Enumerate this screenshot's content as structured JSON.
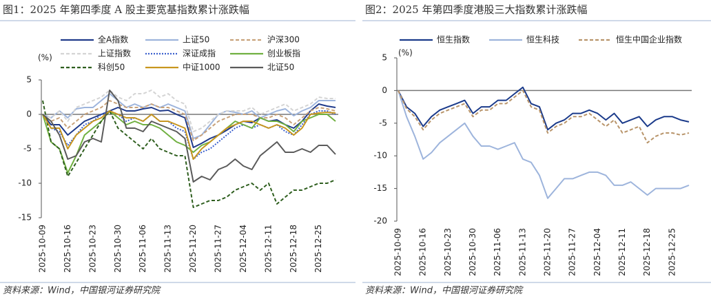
{
  "chart_data": [
    {
      "type": "line",
      "title": "图1：2025 年第四季度 A 股主要宽基指数累计涨跌幅",
      "y_unit_label": "(%)",
      "source": "资料来源：Wind，中国银河证券研究院",
      "categories": [
        "2025-10-09",
        null,
        null,
        "2025-10-16",
        null,
        null,
        "2025-10-23",
        null,
        null,
        "2025-10-30",
        null,
        null,
        "2025-11-06",
        null,
        null,
        "2025-11-13",
        null,
        null,
        "2025-11-20",
        null,
        null,
        "2025-11-27",
        null,
        null,
        "2025-12-04",
        null,
        null,
        "2025-12-11",
        null,
        null,
        "2025-12-18",
        null,
        null,
        "2025-12-25",
        null,
        null
      ],
      "ylim": [
        -15,
        5
      ],
      "yticks": [
        -15,
        -10,
        -5,
        0,
        5
      ],
      "series": [
        {
          "name": "全A指数",
          "color": "#1f3a8a",
          "style": "solid",
          "values": [
            0,
            -1.5,
            -1.5,
            -3,
            -2,
            -1,
            -0.5,
            0,
            0.5,
            1,
            0.5,
            0.5,
            0.8,
            1,
            0.5,
            0.6,
            0,
            -0.5,
            -4.8,
            -4.2,
            -3.5,
            -3,
            -2.3,
            -1.5,
            -1,
            -1.2,
            -0.5,
            -1,
            -0.8,
            -1.5,
            -2,
            -1,
            0.5,
            1.5,
            1.2,
            1
          ]
        },
        {
          "name": "上证50",
          "color": "#9db4dc",
          "style": "solid",
          "values": [
            0,
            -0.5,
            0.5,
            -0.5,
            0.8,
            1,
            1,
            2,
            3,
            2,
            1,
            1.5,
            1,
            1.5,
            1,
            1.5,
            1,
            0.5,
            -3.5,
            -3,
            -1.5,
            0,
            0.5,
            0.3,
            0,
            0.5,
            -0.5,
            0,
            0.5,
            0.8,
            -0.2,
            0.5,
            1,
            2,
            2,
            2
          ]
        },
        {
          "name": "沪深300",
          "color": "#c8a27a",
          "style": "dashed",
          "values": [
            0,
            -1,
            -0.5,
            -2,
            -1,
            0,
            0.5,
            1,
            2,
            1.5,
            1,
            1,
            1,
            1.5,
            1,
            1,
            0.5,
            0,
            -3.8,
            -3,
            -2,
            -1,
            -0.5,
            0,
            0,
            0,
            -0.5,
            -0.5,
            0,
            -0.5,
            -1.5,
            -0.5,
            0.5,
            1,
            0.8,
            0.5
          ]
        },
        {
          "name": "上证指数",
          "color": "#d4d4d4",
          "style": "dashed",
          "values": [
            0,
            -0.5,
            0.5,
            -1,
            1,
            1.5,
            2,
            2.5,
            3.5,
            2.5,
            2,
            3,
            3,
            3.5,
            2.5,
            3,
            2,
            1.5,
            -2.5,
            -2,
            -1,
            0,
            0.5,
            0.5,
            0.5,
            1,
            0,
            0.5,
            1,
            1.5,
            0.5,
            1,
            1.5,
            2.5,
            2.3,
            2.3
          ]
        },
        {
          "name": "深证成指",
          "color": "#3a5fcd",
          "style": "dotted",
          "values": [
            0,
            -2,
            -2.5,
            -4.5,
            -3,
            -1.5,
            -1,
            0,
            0.5,
            0,
            -1,
            -0.5,
            -1,
            0,
            -1,
            -1,
            -2,
            -2.5,
            -6.5,
            -5.5,
            -5,
            -4,
            -3,
            -2,
            -1.5,
            -2,
            -1.5,
            -2,
            -1.5,
            -2.5,
            -3,
            -1.5,
            0,
            0.5,
            0.5,
            0
          ]
        },
        {
          "name": "创业板指",
          "color": "#70b040",
          "style": "solid",
          "values": [
            0,
            -4,
            -5,
            -8.5,
            -6,
            -3,
            -2,
            -1,
            0.5,
            -0.5,
            -1.5,
            -1,
            -1.5,
            -1.5,
            -2,
            -3,
            -4,
            -4.5,
            -5.5,
            -4.5,
            -4,
            -3,
            -2,
            -1,
            -1.5,
            -2,
            -0.5,
            -1,
            -1,
            -1.5,
            -2.5,
            -1,
            -0.5,
            0,
            0,
            -1
          ]
        },
        {
          "name": "科创50",
          "color": "#2e5e1e",
          "style": "dashed",
          "values": [
            2,
            -4,
            -5,
            -9,
            -7,
            -5,
            -3,
            -1,
            0.5,
            -2,
            -3,
            -4,
            -5,
            -3.5,
            -5,
            -5.5,
            -6,
            -6,
            -13.5,
            -13,
            -12.5,
            -12.5,
            -12,
            -11,
            -10.5,
            -10,
            -11,
            -10,
            -13,
            -12,
            -11,
            -11,
            -10.5,
            -10,
            -10,
            -9.5
          ]
        },
        {
          "name": "中证1000",
          "color": "#c8961e",
          "style": "solid",
          "values": [
            0,
            -2,
            -2,
            -5,
            -3,
            -2,
            -1,
            -0.5,
            0.5,
            0,
            -0.5,
            -0.5,
            -1,
            0,
            -1,
            -1,
            -1.5,
            -2,
            -6.5,
            -5,
            -4,
            -3,
            -2,
            -1.5,
            -1,
            -1,
            -1.5,
            -2,
            -1.5,
            -2,
            -3,
            -2,
            0,
            0.2,
            0.3,
            0.2
          ]
        },
        {
          "name": "北证50",
          "color": "#5a5a5a",
          "style": "solid",
          "values": [
            0,
            -1,
            -3,
            -6.5,
            -6,
            -4,
            -3.5,
            -4,
            3.5,
            2,
            -2,
            -2,
            -2.5,
            -1,
            -1.5,
            -2,
            -2.5,
            -3.5,
            -9.8,
            -9,
            -9.5,
            -8,
            -7.5,
            -6.5,
            -7.5,
            -8,
            -6,
            -5,
            -4,
            -5.5,
            -5.5,
            -5,
            -5.5,
            -4.5,
            -4.5,
            -5.8
          ]
        }
      ]
    },
    {
      "type": "line",
      "title": "图2：2025 年第四季度港股三大指数累计涨跌幅",
      "y_unit_label": "(%)",
      "source": "资料来源：Wind，中国银河证券研究院",
      "categories": [
        "2025-10-09",
        null,
        null,
        "2025-10-16",
        null,
        null,
        "2025-10-23",
        null,
        null,
        "2025-10-30",
        null,
        null,
        "2025-11-06",
        null,
        null,
        "2025-11-13",
        null,
        null,
        "2025-11-20",
        null,
        null,
        "2025-11-27",
        null,
        null,
        "2025-12-04",
        null,
        null,
        "2025-12-11",
        null,
        null,
        "2025-12-18",
        null,
        null,
        "2025-12-25",
        null,
        null
      ],
      "ylim": [
        -20,
        5
      ],
      "yticks": [
        -20,
        -15,
        -10,
        -5,
        0,
        5
      ],
      "series": [
        {
          "name": "恒生指数",
          "color": "#1a3a8a",
          "style": "solid",
          "values": [
            0,
            -2.5,
            -3.5,
            -5.5,
            -4,
            -3,
            -2.5,
            -2,
            -1.5,
            -3.5,
            -2.5,
            -2.5,
            -1.5,
            -1.5,
            -0.5,
            0.5,
            -2,
            -2.5,
            -6,
            -5,
            -4.5,
            -3.5,
            -3.5,
            -3,
            -3.5,
            -4.5,
            -3.5,
            -5,
            -4.5,
            -4,
            -5.5,
            -4.5,
            -4,
            -4,
            -4.5,
            -4.8
          ]
        },
        {
          "name": "恒生科技",
          "color": "#9db4dc",
          "style": "solid",
          "values": [
            0,
            -4,
            -7,
            -10.5,
            -9.5,
            -8,
            -7,
            -6,
            -5,
            -7,
            -8.5,
            -8.5,
            -9,
            -8.5,
            -8,
            -10.5,
            -11,
            -13,
            -16.5,
            -15,
            -13.5,
            -13.5,
            -13,
            -12.5,
            -12.5,
            -13,
            -14.5,
            -14.5,
            -14,
            -15,
            -16,
            -15,
            -15,
            -15,
            -15,
            -14.5
          ]
        },
        {
          "name": "恒生中国企业指数",
          "color": "#b8946a",
          "style": "dashed",
          "values": [
            0,
            -2.8,
            -4,
            -6,
            -4.5,
            -3.5,
            -3,
            -2.5,
            -2,
            -4,
            -3,
            -3,
            -2,
            -2,
            -1,
            0,
            -2.5,
            -3,
            -6.5,
            -5.5,
            -5,
            -4,
            -4,
            -3.5,
            -4.5,
            -5.5,
            -4.5,
            -6.5,
            -6,
            -5.5,
            -8,
            -7,
            -6.5,
            -6.5,
            -6.8,
            -6.5
          ]
        }
      ]
    }
  ]
}
